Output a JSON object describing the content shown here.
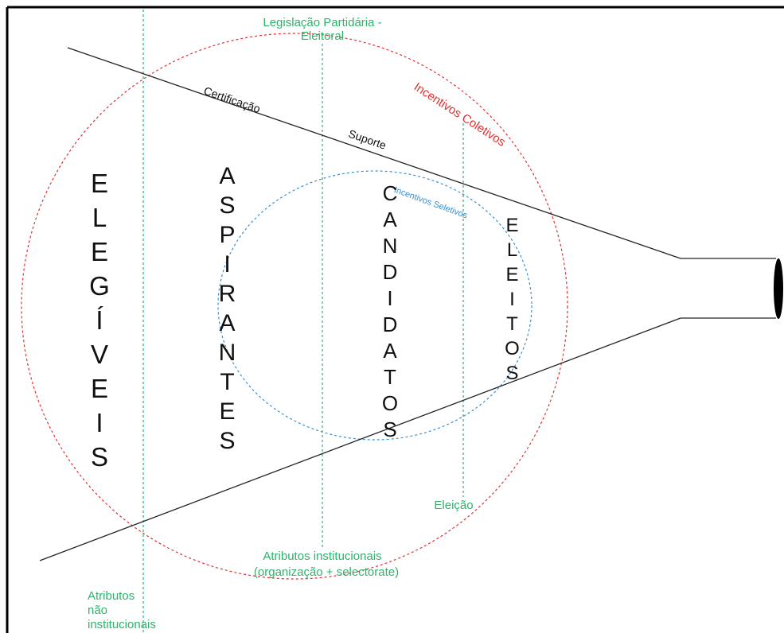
{
  "top_label": {
    "lines": [
      "Legislação Partidária -",
      "Eleitoral"
    ]
  },
  "line_labels": {
    "upper_1": "Certificação",
    "upper_2": "Suporte"
  },
  "circle_labels": {
    "outer": "Incentivos Coletivos",
    "inner": "Incentivos Seletivos"
  },
  "stages": [
    "ELEGÍVEIS",
    "ASPIRANTES",
    "CANDIDATOS",
    "ELEITOS"
  ],
  "election_label": "Eleição",
  "institutional_label": {
    "lines": [
      "Atributos institucionais",
      "(organização + selectorate)"
    ]
  },
  "non_institutional_label": {
    "lines": [
      "Atributos",
      "não",
      "institucionais"
    ]
  }
}
